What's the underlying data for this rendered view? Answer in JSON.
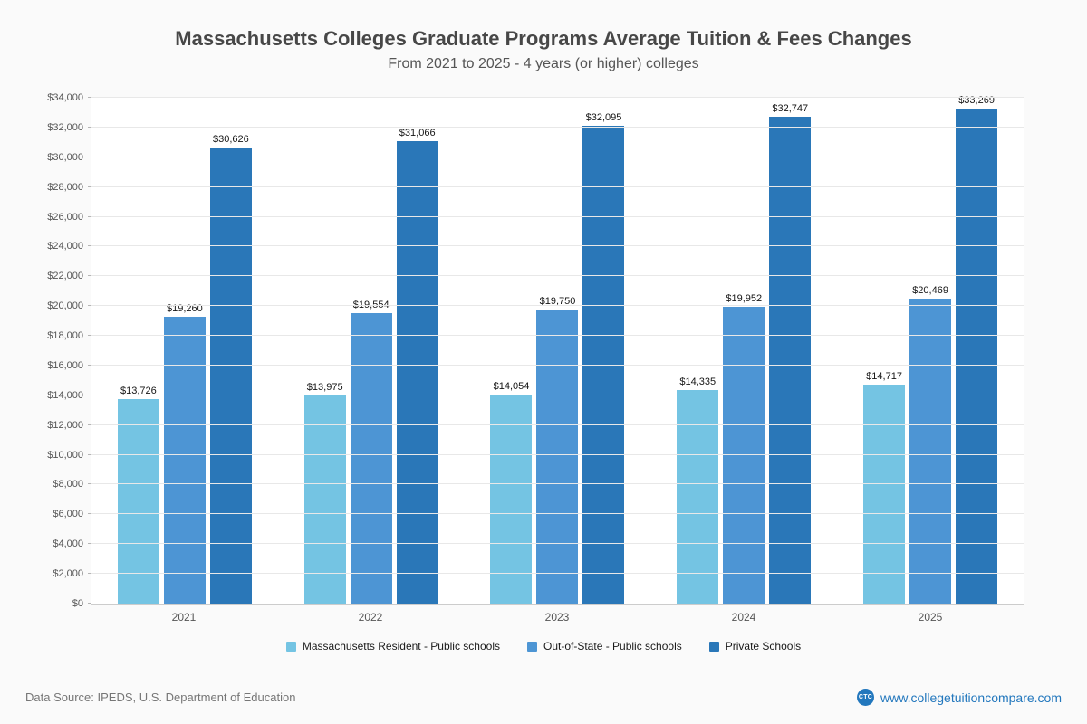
{
  "header": {
    "title": "Massachusetts Colleges Graduate Programs Average Tuition & Fees Changes",
    "subtitle": "From 2021 to 2025 - 4 years (or higher) colleges"
  },
  "chart_data": {
    "type": "bar",
    "title": "Massachusetts Colleges Graduate Programs Average Tuition & Fees Changes",
    "subtitle": "From 2021 to 2025 - 4 years (or higher) colleges",
    "categories": [
      "2021",
      "2022",
      "2023",
      "2024",
      "2025"
    ],
    "series": [
      {
        "name": "Massachusetts Resident - Public schools",
        "color": "#74c4e3",
        "values": [
          13726,
          13975,
          14054,
          14335,
          14717
        ]
      },
      {
        "name": "Out-of-State - Public schools",
        "color": "#4d95d4",
        "values": [
          19260,
          19554,
          19750,
          19952,
          20469
        ]
      },
      {
        "name": "Private Schools",
        "color": "#2a77b8",
        "values": [
          30626,
          31066,
          32095,
          32747,
          33269
        ]
      }
    ],
    "xlabel": "",
    "ylabel": "",
    "ylim": [
      0,
      34000
    ],
    "ytick_step": 2000,
    "grid": true,
    "legend_position": "bottom",
    "value_label_prefix": "$"
  },
  "footer": {
    "data_source": "Data Source: IPEDS, U.S. Department of Education",
    "website": "www.collegetuitioncompare.com",
    "logo_text": "CTC"
  }
}
